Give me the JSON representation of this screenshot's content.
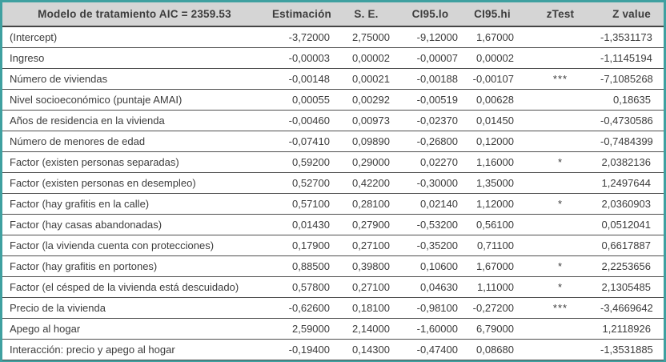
{
  "colors": {
    "border-teal": "#3fa0a0",
    "header-bg": "#d5d5d5",
    "text": "#3c3c3c",
    "line": "#4e4e4e"
  },
  "table": {
    "header": [
      "Modelo de tratamiento AIC = 2359.53",
      "Estimación",
      "S. E.",
      "CI95.lo",
      "CI95.hi",
      "zTest",
      "Z value"
    ],
    "rows": [
      [
        "(Intercept)",
        "-3,72000",
        "2,75000",
        "-9,12000",
        "1,67000",
        "",
        "-1,3531173"
      ],
      [
        "Ingreso",
        "-0,00003",
        "0,00002",
        "-0,00007",
        "0,00002",
        "",
        "-1,1145194"
      ],
      [
        "Número de viviendas",
        "-0,00148",
        "0,00021",
        "-0,00188",
        "-0,00107",
        "***",
        "-7,1085268"
      ],
      [
        "Nivel socioeconómico (puntaje AMAI)",
        "0,00055",
        "0,00292",
        "-0,00519",
        "0,00628",
        "",
        "0,18635"
      ],
      [
        "Años de residencia en la vivienda",
        "-0,00460",
        "0,00973",
        "-0,02370",
        "0,01450",
        "",
        "-0,4730586"
      ],
      [
        "Número de menores de edad",
        "-0,07410",
        "0,09890",
        "-0,26800",
        "0,12000",
        "",
        "-0,7484399"
      ],
      [
        "Factor (existen personas separadas)",
        "0,59200",
        "0,29000",
        "0,02270",
        "1,16000",
        "*",
        "2,0382136"
      ],
      [
        "Factor (existen personas en desempleo)",
        "0,52700",
        "0,42200",
        "-0,30000",
        "1,35000",
        "",
        "1,2497644"
      ],
      [
        "Factor (hay grafitis en la calle)",
        "0,57100",
        "0,28100",
        "0,02140",
        "1,12000",
        "*",
        "2,0360903"
      ],
      [
        "Factor (hay casas abandonadas)",
        "0,01430",
        "0,27900",
        "-0,53200",
        "0,56100",
        "",
        "0,0512041"
      ],
      [
        "Factor (la vivienda cuenta con protecciones)",
        "0,17900",
        "0,27100",
        "-0,35200",
        "0,71100",
        "",
        "0,6617887"
      ],
      [
        "Factor (hay grafitis en portones)",
        "0,88500",
        "0,39800",
        "0,10600",
        "1,67000",
        "*",
        "2,2253656"
      ],
      [
        "Factor (el césped de la vivienda está descuidado)",
        "0,57800",
        "0,27100",
        "0,04630",
        "1,11000",
        "*",
        "2,1305485"
      ],
      [
        "Precio de la vivienda",
        "-0,62600",
        "0,18100",
        "-0,98100",
        "-0,27200",
        "***",
        "-3,4669642"
      ],
      [
        "Apego al hogar",
        "2,59000",
        "2,14000",
        "-1,60000",
        "6,79000",
        "",
        "1,2118926"
      ],
      [
        "Interacción: precio y apego al hogar",
        "-0,19400",
        "0,14300",
        "-0,47400",
        "0,08680",
        "",
        "-1,3531885"
      ]
    ]
  }
}
